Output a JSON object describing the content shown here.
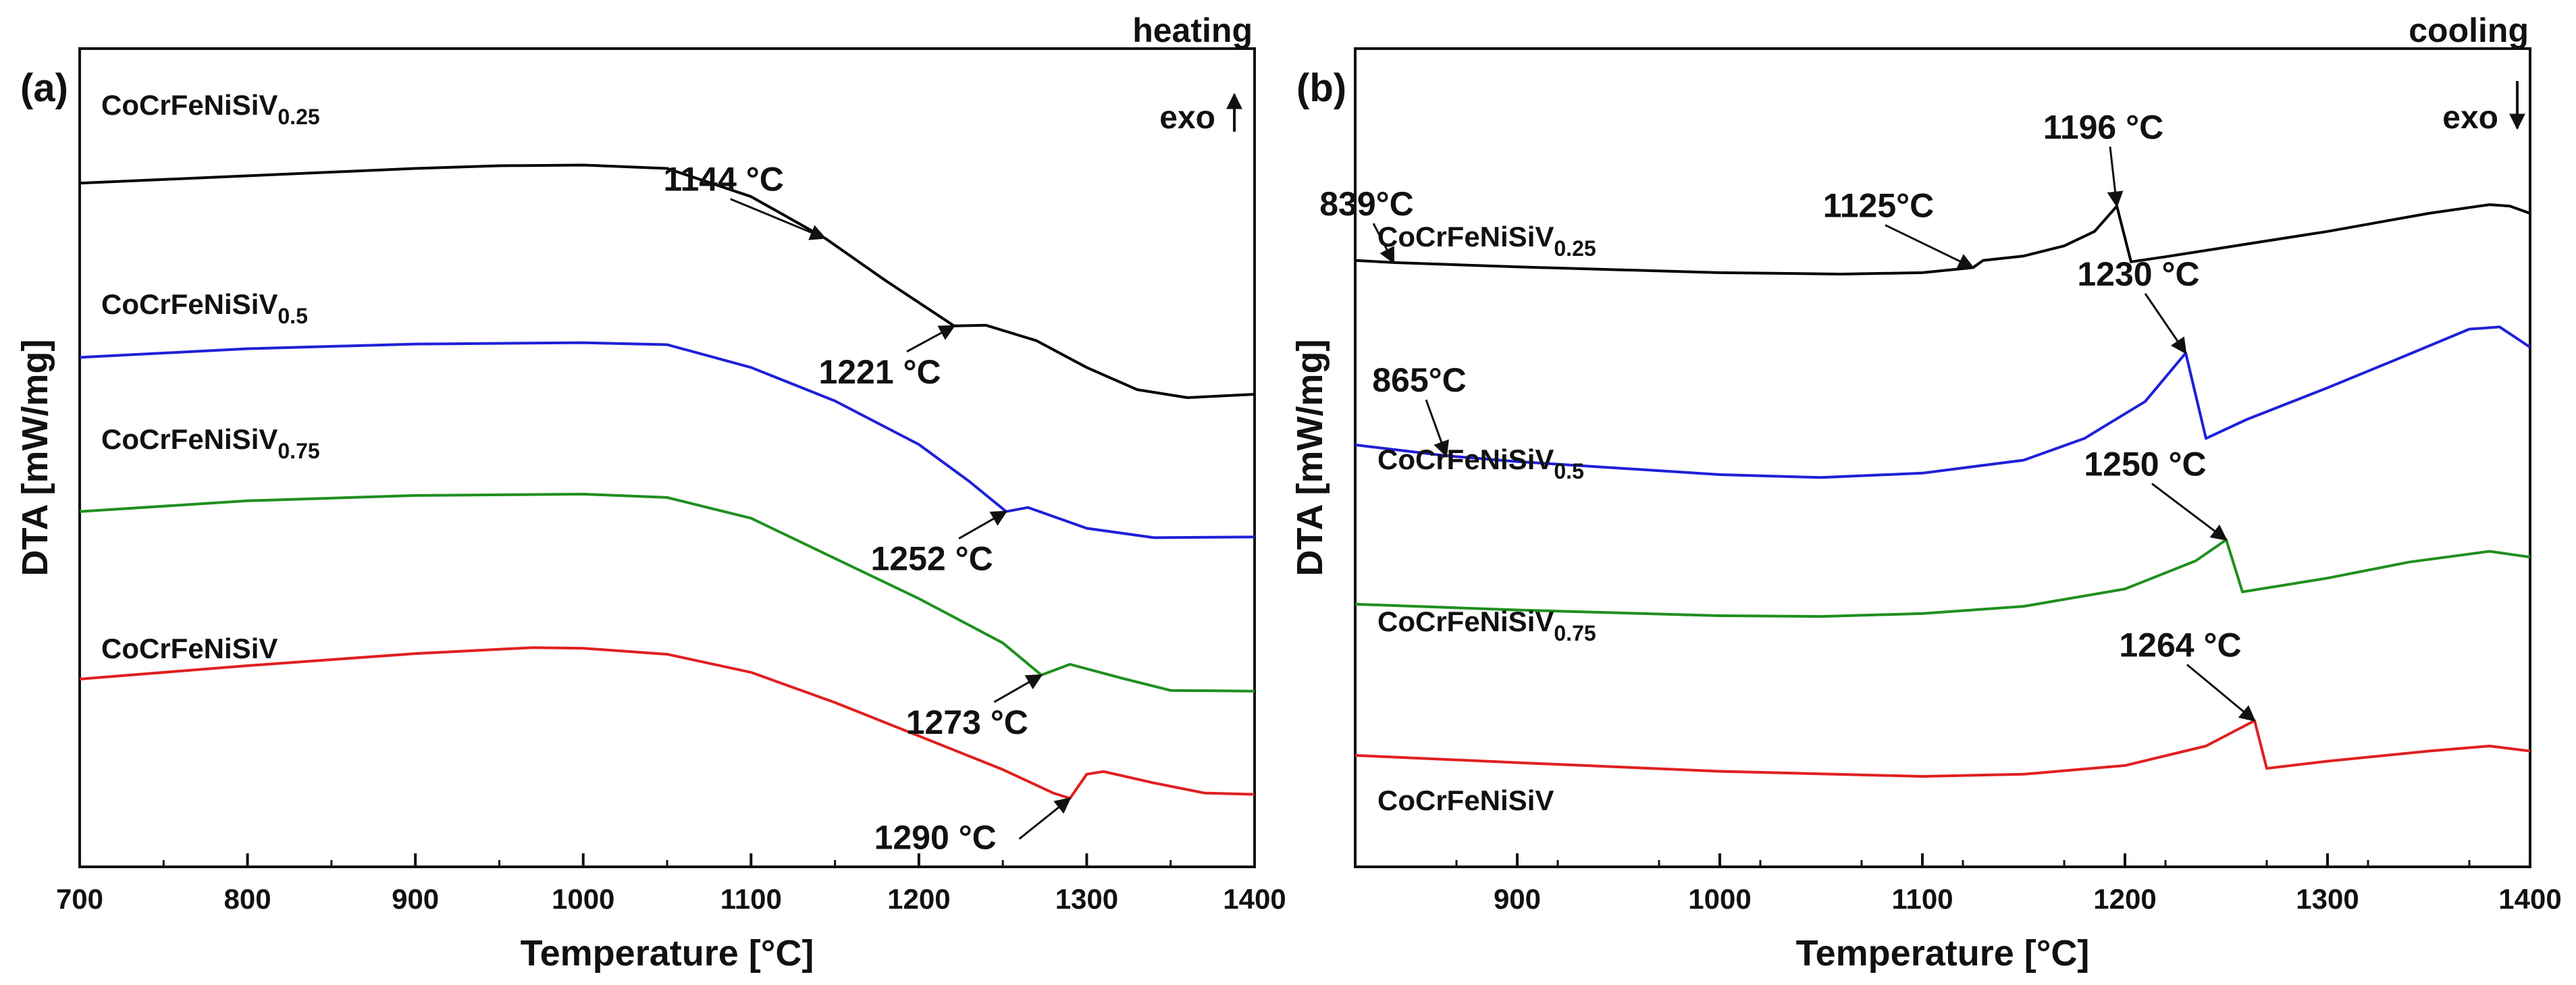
{
  "chart_data": [
    {
      "type": "line",
      "panel": "(a)",
      "mode_label": "heating",
      "direction_label": "exo",
      "direction": "up",
      "xlabel": "Temperature [°C]",
      "ylabel": "DTA [mW/mg]",
      "xlim": [
        700,
        1400
      ],
      "ylim": [
        0,
        100
      ],
      "x_ticks": [
        700,
        800,
        900,
        1000,
        1100,
        1200,
        1300,
        1400
      ],
      "y_ticks_labeled": false,
      "grid": false,
      "legend": "none",
      "series": [
        {
          "label_base": "CoCrFeNiSiV",
          "label_sub": "0.25",
          "color": "#000000",
          "points": [
            [
              700,
              91
            ],
            [
              800,
              92.1
            ],
            [
              900,
              93.2
            ],
            [
              950,
              93.6
            ],
            [
              1000,
              93.7
            ],
            [
              1050,
              93.2
            ],
            [
              1100,
              89
            ],
            [
              1144,
              82.8
            ],
            [
              1180,
              76.5
            ],
            [
              1221,
              69.7
            ],
            [
              1240,
              69.8
            ],
            [
              1270,
              67.5
            ],
            [
              1300,
              63.5
            ],
            [
              1330,
              60.2
            ],
            [
              1360,
              59
            ],
            [
              1400,
              59.5
            ]
          ]
        },
        {
          "label_base": "CoCrFeNiSiV",
          "label_sub": "0.5",
          "color": "#1f1fd8",
          "points": [
            [
              700,
              65
            ],
            [
              800,
              66.3
            ],
            [
              900,
              67
            ],
            [
              1000,
              67.2
            ],
            [
              1050,
              66.9
            ],
            [
              1100,
              63.5
            ],
            [
              1150,
              58.5
            ],
            [
              1200,
              52
            ],
            [
              1230,
              46.5
            ],
            [
              1252,
              42
            ],
            [
              1265,
              42.6
            ],
            [
              1300,
              39.5
            ],
            [
              1340,
              38.1
            ],
            [
              1400,
              38.2
            ]
          ]
        },
        {
          "label_base": "CoCrFeNiSiV",
          "label_sub": "0.75",
          "color": "#1f8f1f",
          "points": [
            [
              700,
              42
            ],
            [
              800,
              43.6
            ],
            [
              900,
              44.4
            ],
            [
              1000,
              44.6
            ],
            [
              1050,
              44.1
            ],
            [
              1100,
              41
            ],
            [
              1150,
              35
            ],
            [
              1200,
              29
            ],
            [
              1250,
              22.4
            ],
            [
              1273,
              17.6
            ],
            [
              1290,
              19.2
            ],
            [
              1320,
              17.2
            ],
            [
              1350,
              15.3
            ],
            [
              1400,
              15.2
            ]
          ]
        },
        {
          "label_base": "CoCrFeNiSiV",
          "label_sub": "",
          "color": "#e01f1f",
          "points": [
            [
              700,
              17
            ],
            [
              800,
              19
            ],
            [
              900,
              20.8
            ],
            [
              970,
              21.7
            ],
            [
              1000,
              21.6
            ],
            [
              1050,
              20.7
            ],
            [
              1100,
              18
            ],
            [
              1150,
              13.5
            ],
            [
              1200,
              8.5
            ],
            [
              1250,
              3.5
            ],
            [
              1280,
              0
            ],
            [
              1290,
              -0.8
            ],
            [
              1300,
              2.8
            ],
            [
              1310,
              3.2
            ],
            [
              1340,
              1.5
            ],
            [
              1370,
              0
            ],
            [
              1400,
              -0.2
            ]
          ]
        }
      ],
      "annotations": [
        {
          "text": "1144 °C",
          "x": 1144,
          "y": 82.8,
          "series": 0
        },
        {
          "text": "1221 °C",
          "x": 1221,
          "y": 69.7,
          "series": 0
        },
        {
          "text": "1252 °C",
          "x": 1252,
          "y": 42,
          "series": 1
        },
        {
          "text": "1273 °C",
          "x": 1273,
          "y": 17.6,
          "series": 2
        },
        {
          "text": "1290 °C",
          "x": 1290,
          "y": -0.8,
          "series": 3
        }
      ]
    },
    {
      "type": "line",
      "panel": "(b)",
      "mode_label": "cooling",
      "direction_label": "exo",
      "direction": "down",
      "xlabel": "Temperature [°C]",
      "ylabel": "DTA [mW/mg]",
      "xlim": [
        820,
        1400
      ],
      "ylim": [
        0,
        100
      ],
      "x_ticks": [
        900,
        1000,
        1100,
        1200,
        1300,
        1400
      ],
      "y_ticks_labeled": false,
      "grid": false,
      "legend": "none",
      "series": [
        {
          "label_base": "CoCrFeNiSiV",
          "label_sub": "0.25",
          "color": "#000000",
          "points": [
            [
              820,
              81
            ],
            [
              839,
              80.7
            ],
            [
              900,
              80.1
            ],
            [
              1000,
              79.3
            ],
            [
              1060,
              79.1
            ],
            [
              1100,
              79.3
            ],
            [
              1125,
              80
            ],
            [
              1130,
              81
            ],
            [
              1150,
              81.6
            ],
            [
              1170,
              83
            ],
            [
              1185,
              85
            ],
            [
              1196,
              88.5
            ],
            [
              1203,
              80.8
            ],
            [
              1220,
              81.5
            ],
            [
              1300,
              85
            ],
            [
              1350,
              87.5
            ],
            [
              1380,
              88.7
            ],
            [
              1390,
              88.5
            ],
            [
              1400,
              87.5
            ]
          ]
        },
        {
          "label_base": "CoCrFeNiSiV",
          "label_sub": "0.5",
          "color": "#1f1fd8",
          "points": [
            [
              820,
              55.5
            ],
            [
              865,
              54
            ],
            [
              900,
              53.2
            ],
            [
              1000,
              51.4
            ],
            [
              1050,
              51
            ],
            [
              1100,
              51.6
            ],
            [
              1150,
              53.4
            ],
            [
              1180,
              56.4
            ],
            [
              1210,
              61.5
            ],
            [
              1230,
              68.2
            ],
            [
              1240,
              56.4
            ],
            [
              1260,
              59
            ],
            [
              1300,
              63.4
            ],
            [
              1340,
              68
            ],
            [
              1370,
              71.5
            ],
            [
              1385,
              71.8
            ],
            [
              1400,
              69
            ]
          ]
        },
        {
          "label_base": "CoCrFeNiSiV",
          "label_sub": "0.75",
          "color": "#1f8f1f",
          "points": [
            [
              820,
              33.5
            ],
            [
              900,
              32.7
            ],
            [
              1000,
              31.9
            ],
            [
              1050,
              31.8
            ],
            [
              1100,
              32.2
            ],
            [
              1150,
              33.2
            ],
            [
              1200,
              35.6
            ],
            [
              1235,
              39.5
            ],
            [
              1250,
              42.4
            ],
            [
              1258,
              35.2
            ],
            [
              1300,
              37.1
            ],
            [
              1340,
              39.3
            ],
            [
              1380,
              40.8
            ],
            [
              1400,
              40
            ]
          ]
        },
        {
          "label_base": "CoCrFeNiSiV",
          "label_sub": "",
          "color": "#e01f1f",
          "points": [
            [
              820,
              12.6
            ],
            [
              900,
              11.6
            ],
            [
              1000,
              10.4
            ],
            [
              1100,
              9.7
            ],
            [
              1150,
              10
            ],
            [
              1200,
              11.2
            ],
            [
              1240,
              13.9
            ],
            [
              1264,
              17.4
            ],
            [
              1270,
              10.8
            ],
            [
              1300,
              11.8
            ],
            [
              1350,
              13.2
            ],
            [
              1380,
              13.9
            ],
            [
              1400,
              13.2
            ]
          ]
        }
      ],
      "annotations": [
        {
          "text": "839°C",
          "x": 839,
          "y": 80.7,
          "series": 0
        },
        {
          "text": "1125°C",
          "x": 1125,
          "y": 80,
          "series": 0
        },
        {
          "text": "1196 °C",
          "x": 1196,
          "y": 88.5,
          "series": 0
        },
        {
          "text": "865°C",
          "x": 865,
          "y": 54,
          "series": 1
        },
        {
          "text": "1230 °C",
          "x": 1230,
          "y": 68.2,
          "series": 1
        },
        {
          "text": "1250 °C",
          "x": 1250,
          "y": 42.4,
          "series": 2
        },
        {
          "text": "1264 °C",
          "x": 1264,
          "y": 17.4,
          "series": 3
        }
      ]
    }
  ]
}
